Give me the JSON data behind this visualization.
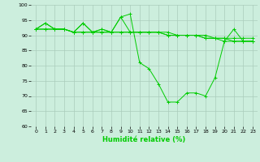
{
  "title": "",
  "xlabel": "Humidité relative (%)",
  "ylabel": "",
  "background_color": "#cceedd",
  "grid_color": "#aaccbb",
  "line_color": "#00cc00",
  "xlim": [
    -0.5,
    23.5
  ],
  "ylim": [
    60,
    100
  ],
  "yticks": [
    60,
    65,
    70,
    75,
    80,
    85,
    90,
    95,
    100
  ],
  "xticks": [
    0,
    1,
    2,
    3,
    4,
    5,
    6,
    7,
    8,
    9,
    10,
    11,
    12,
    13,
    14,
    15,
    16,
    17,
    18,
    19,
    20,
    21,
    22,
    23
  ],
  "series": [
    [
      92,
      94,
      92,
      92,
      91,
      94,
      91,
      92,
      91,
      96,
      97,
      81,
      79,
      74,
      68,
      68,
      71,
      71,
      70,
      76,
      88,
      92,
      88,
      88
    ],
    [
      92,
      94,
      92,
      92,
      91,
      94,
      91,
      92,
      91,
      96,
      91,
      91,
      91,
      91,
      91,
      90,
      90,
      90,
      89,
      89,
      89,
      89,
      89,
      89
    ],
    [
      92,
      92,
      92,
      92,
      91,
      91,
      91,
      91,
      91,
      91,
      91,
      91,
      91,
      91,
      90,
      90,
      90,
      90,
      89,
      89,
      89,
      88,
      88,
      88
    ],
    [
      92,
      92,
      92,
      92,
      91,
      91,
      91,
      91,
      91,
      91,
      91,
      91,
      91,
      91,
      90,
      90,
      90,
      90,
      90,
      89,
      88,
      88,
      88,
      88
    ]
  ]
}
